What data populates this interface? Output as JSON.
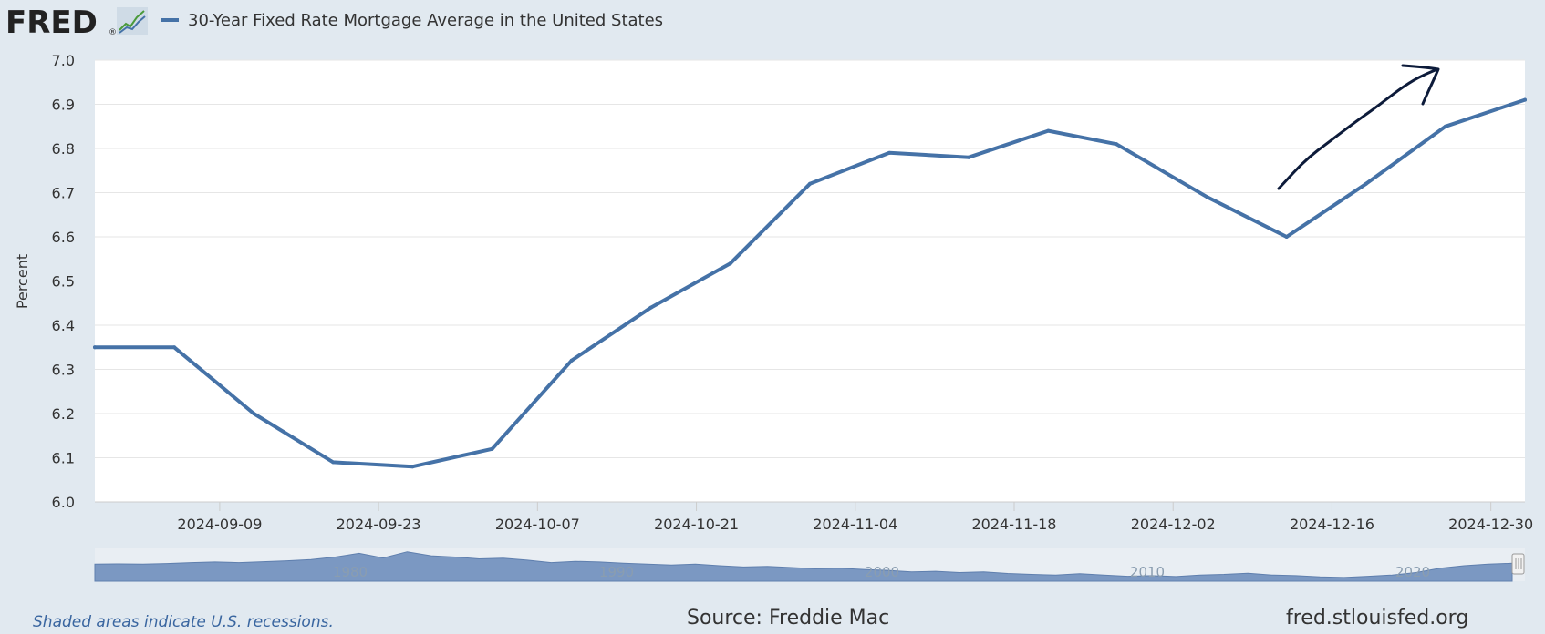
{
  "logo": {
    "text": "FRED",
    "mark": "®"
  },
  "legend": {
    "series_name": "30-Year Fixed Rate Mortgage Average in the United States",
    "series_color": "#4572a7"
  },
  "chart_data": {
    "type": "line",
    "ylabel": "Percent",
    "ylim": [
      6.0,
      7.0
    ],
    "yticks": [
      "6.0",
      "6.1",
      "6.2",
      "6.3",
      "6.4",
      "6.5",
      "6.6",
      "6.7",
      "6.8",
      "6.9",
      "7.0"
    ],
    "xlim": [
      "2024-08-29",
      "2025-01-02"
    ],
    "xticks": [
      "2024-09-09",
      "2024-09-23",
      "2024-10-07",
      "2024-10-21",
      "2024-11-04",
      "2024-11-18",
      "2024-12-02",
      "2024-12-16",
      "2024-12-30"
    ],
    "grid": true,
    "series": [
      {
        "name": "30-Year Fixed Rate Mortgage Average in the United States",
        "color": "#4572a7",
        "x": [
          "2024-08-29",
          "2024-09-05",
          "2024-09-12",
          "2024-09-19",
          "2024-09-26",
          "2024-10-03",
          "2024-10-10",
          "2024-10-17",
          "2024-10-24",
          "2024-10-31",
          "2024-11-07",
          "2024-11-14",
          "2024-11-21",
          "2024-11-27",
          "2024-12-05",
          "2024-12-12",
          "2024-12-19",
          "2024-12-26",
          "2025-01-02"
        ],
        "y": [
          6.35,
          6.35,
          6.2,
          6.09,
          6.08,
          6.12,
          6.32,
          6.44,
          6.54,
          6.72,
          6.79,
          6.78,
          6.84,
          6.81,
          6.69,
          6.6,
          6.72,
          6.85,
          6.91
        ]
      }
    ],
    "annotation": {
      "type": "hand-drawn-arrow",
      "color": "#0d1b3a"
    }
  },
  "navigator": {
    "labels": [
      "1980",
      "1990",
      "2000",
      "2010",
      "2020"
    ],
    "fill_color": "#7b98c2"
  },
  "footer": {
    "recession_note": "Shaded areas indicate U.S. recessions.",
    "source": "Source: Freddie Mac",
    "site": "fred.stlouisfed.org"
  }
}
